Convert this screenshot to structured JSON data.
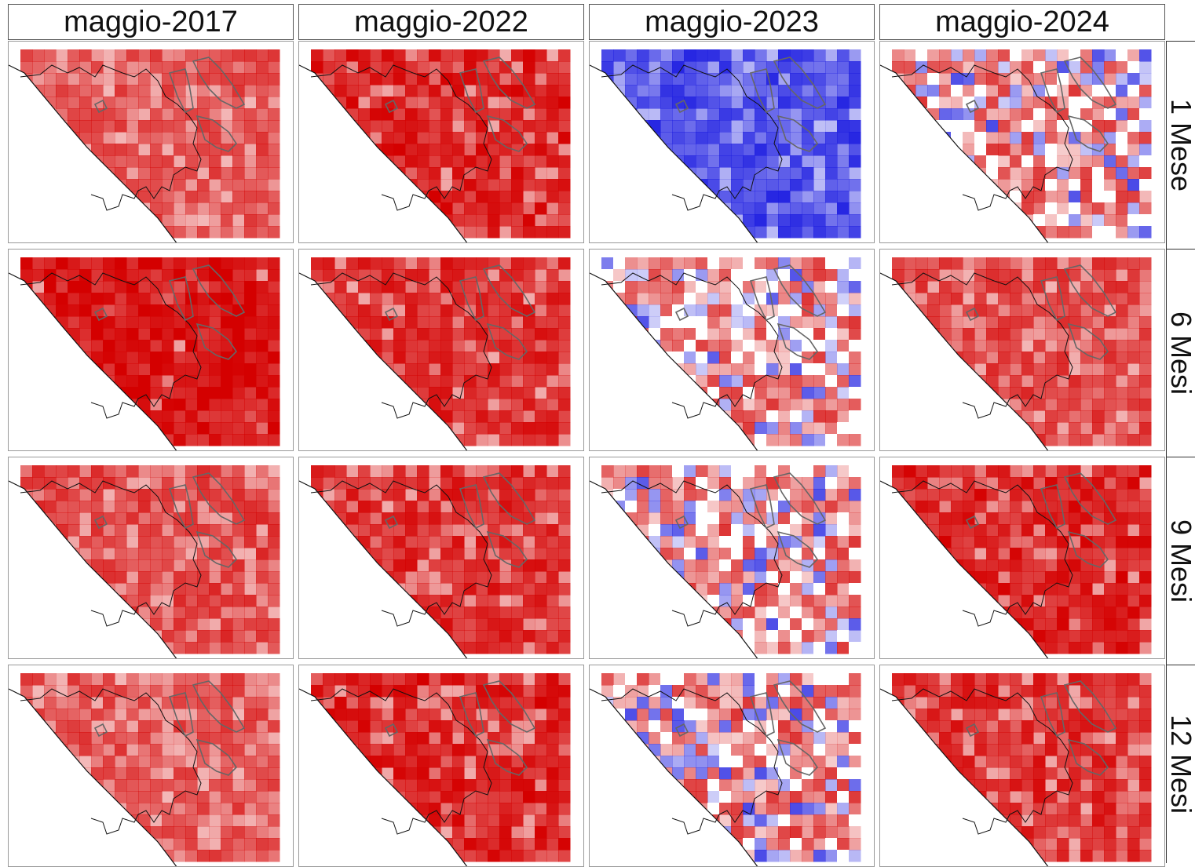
{
  "columns": [
    "maggio-2017",
    "maggio-2022",
    "maggio-2023",
    "maggio-2024"
  ],
  "rows": [
    "1 Mese",
    "6 Mesi",
    "9 Mesi",
    "12 Mesi"
  ],
  "colors": {
    "red": "#d40000",
    "white": "#ffffff",
    "blue": "#1a1ae0",
    "outline_dark": "#111111",
    "outline_grey": "#666666"
  },
  "panels": [
    [
      {
        "tone": "red",
        "level": 0.7,
        "spots": 0.3
      },
      {
        "tone": "red",
        "level": 0.9,
        "spots": 0.2
      },
      {
        "tone": "blue",
        "level": 0.85,
        "spots": 0.25
      },
      {
        "tone": "mixed",
        "level": 0.45,
        "spots": 0.55
      }
    ],
    [
      {
        "tone": "red",
        "level": 0.95,
        "spots": 0.05
      },
      {
        "tone": "red",
        "level": 0.85,
        "spots": 0.2
      },
      {
        "tone": "mixed",
        "level": 0.5,
        "spots": 0.6
      },
      {
        "tone": "red",
        "level": 0.75,
        "spots": 0.3
      }
    ],
    [
      {
        "tone": "red",
        "level": 0.75,
        "spots": 0.35
      },
      {
        "tone": "red",
        "level": 0.85,
        "spots": 0.25
      },
      {
        "tone": "mixed",
        "level": 0.55,
        "spots": 0.55
      },
      {
        "tone": "red",
        "level": 0.9,
        "spots": 0.2
      }
    ],
    [
      {
        "tone": "red",
        "level": 0.7,
        "spots": 0.35
      },
      {
        "tone": "red",
        "level": 0.9,
        "spots": 0.2
      },
      {
        "tone": "mixed",
        "level": 0.6,
        "spots": 0.55
      },
      {
        "tone": "red",
        "level": 0.85,
        "spots": 0.25
      }
    ]
  ]
}
